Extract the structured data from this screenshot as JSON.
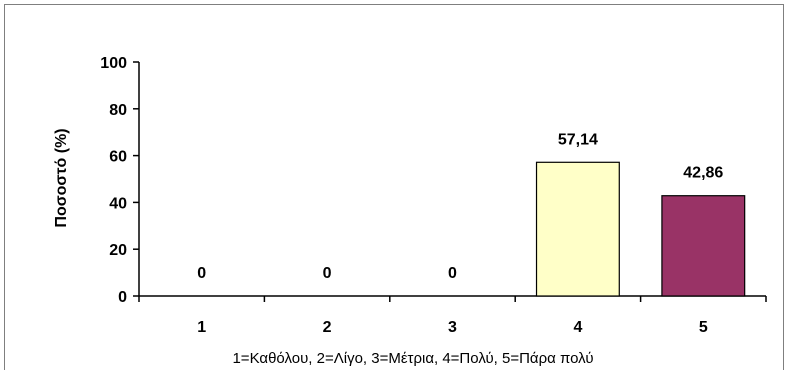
{
  "chart_data": {
    "type": "bar",
    "categories": [
      "1",
      "2",
      "3",
      "4",
      "5"
    ],
    "values": [
      0,
      0,
      0,
      57.14,
      42.86
    ],
    "data_labels": [
      "0",
      "0",
      "0",
      "57,14",
      "42,86"
    ],
    "bar_colors": [
      "#ffffc8",
      "#ffffc8",
      "#ffffc8",
      "#ffffc8",
      "#993366"
    ],
    "ylabel": "Ποσοστό (%)",
    "xlabel": "1=Καθόλου, 2=Λίγο, 3=Μέτρια, 4=Πολύ, 5=Πάρα πολύ",
    "ylim": [
      0,
      100
    ],
    "yticks": [
      "0",
      "20",
      "40",
      "60",
      "80",
      "100"
    ],
    "grid": false,
    "legend": "none"
  }
}
